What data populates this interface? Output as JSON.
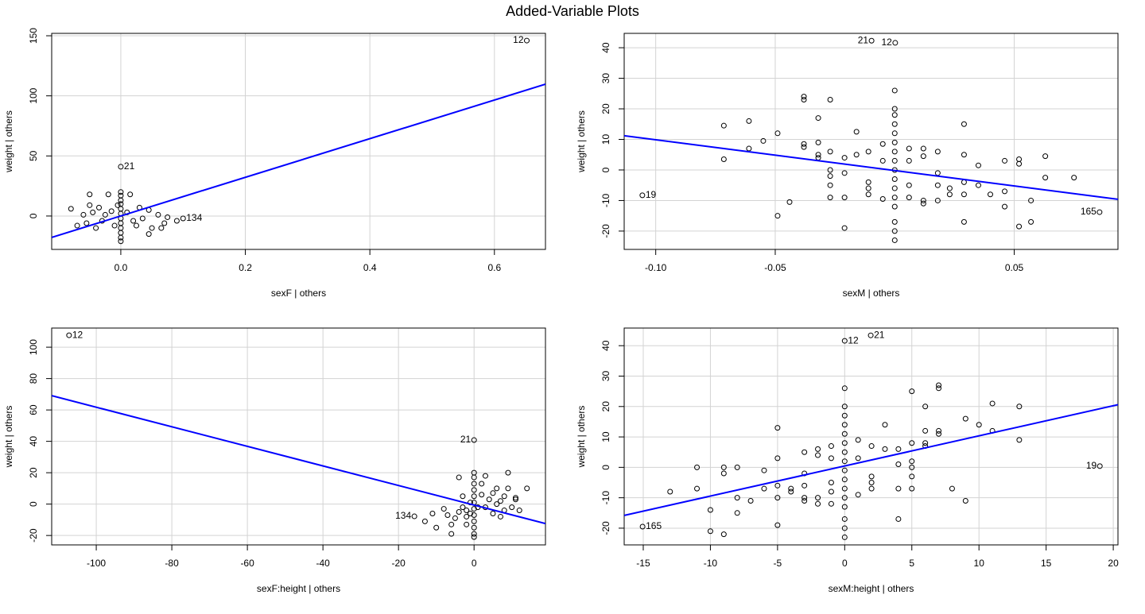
{
  "title": "Added-Variable Plots",
  "chart_data": [
    {
      "type": "scatter",
      "xlabel": "sexF | others",
      "ylabel": "weight  | others",
      "grid": true,
      "point_color": "#000000",
      "xlim": [
        -0.111,
        0.682
      ],
      "ylim": [
        -27.8,
        152
      ],
      "xticks": [
        {
          "value": 0,
          "label": "0.0"
        },
        {
          "value": 0.2,
          "label": "0.2"
        },
        {
          "value": 0.4,
          "label": "0.4"
        },
        {
          "value": 0.6,
          "label": "0.6"
        }
      ],
      "yticks": [
        0,
        50,
        100,
        150
      ],
      "x": [
        0.652,
        0,
        0.1,
        -0.08,
        -0.07,
        -0.06,
        -0.055,
        -0.05,
        -0.05,
        -0.045,
        -0.04,
        -0.035,
        -0.03,
        -0.025,
        -0.02,
        -0.015,
        -0.01,
        -0.005,
        0,
        0,
        0,
        0,
        0,
        0,
        0,
        0,
        0,
        0,
        0,
        0,
        0.01,
        0.015,
        0.02,
        0.025,
        0.03,
        0.035,
        0.045,
        0.045,
        0.05,
        0.06,
        0.065,
        0.07,
        0.075,
        0.09
      ],
      "y": [
        146,
        41,
        -2,
        6,
        -8,
        1,
        -6,
        18,
        9,
        3,
        -10,
        7,
        -4,
        1,
        18,
        4,
        -8,
        9,
        20,
        17,
        13,
        10,
        6,
        2,
        -2,
        -6,
        -10,
        -14,
        -18,
        -21,
        3,
        18,
        -4,
        -8,
        7,
        -2,
        -15,
        5,
        -10,
        1,
        -10,
        -6,
        -1,
        -4
      ],
      "fit": {
        "x": [
          -0.111,
          0.682
        ],
        "y": [
          -17.8,
          109.7
        ],
        "color": "#0000ff"
      },
      "point_labels": [
        {
          "text": "12",
          "x": 0.652,
          "y": 146
        },
        {
          "text": "21",
          "x": 0,
          "y": 41
        },
        {
          "text": "134",
          "x": 0.1,
          "y": -2
        }
      ]
    },
    {
      "type": "scatter",
      "xlabel": "sexM | others",
      "ylabel": "weight  | others",
      "grid": true,
      "point_color": "#000000",
      "xlim": [
        -0.1132,
        0.0934
      ],
      "ylim": [
        -26,
        44.7
      ],
      "xticks": [
        {
          "value": -0.1,
          "label": "-0.10"
        },
        {
          "value": -0.05,
          "label": "-0.05"
        },
        {
          "value": 0.05,
          "label": "0.05"
        }
      ],
      "yticks": [
        -20,
        -10,
        0,
        10,
        20,
        30,
        40
      ],
      "x": [
        -0.0715,
        -0.0715,
        -0.061,
        -0.061,
        -0.055,
        -0.049,
        -0.049,
        -0.044,
        -0.038,
        -0.038,
        -0.038,
        -0.038,
        -0.032,
        -0.032,
        -0.032,
        -0.032,
        -0.027,
        -0.027,
        -0.027,
        -0.027,
        -0.027,
        -0.027,
        -0.021,
        -0.021,
        -0.021,
        -0.021,
        -0.016,
        -0.016,
        -0.011,
        -0.011,
        -0.011,
        -0.011,
        -0.005,
        -0.005,
        -0.005,
        0,
        0,
        0,
        0,
        0,
        0,
        0,
        0,
        0,
        0,
        0,
        0,
        0,
        0,
        0,
        0,
        0.006,
        0.006,
        0.006,
        0.006,
        0.012,
        0.012,
        0.012,
        0.012,
        0.018,
        0.018,
        0.018,
        0.018,
        0.023,
        0.023,
        0.029,
        0.029,
        0.029,
        0.029,
        0.029,
        0.035,
        0.035,
        0.04,
        0.046,
        0.046,
        0.046,
        0.052,
        0.052,
        0.052,
        0.057,
        0.057,
        0.063,
        0.063,
        0.075,
        -0.0097,
        0.0002,
        -0.1056,
        0.0857
      ],
      "y": [
        14.5,
        3.5,
        16,
        7,
        9.5,
        12,
        -15,
        -10.5,
        24,
        23,
        8.5,
        7.5,
        17,
        5,
        4,
        9,
        23,
        6,
        0,
        -2,
        -5,
        -9,
        4,
        -1,
        -9,
        -19,
        5,
        12.5,
        6,
        -4,
        -6,
        -8,
        8.5,
        3,
        -9.5,
        26,
        20,
        18,
        15,
        12,
        9,
        6,
        3,
        0,
        -3,
        -6,
        -9,
        -12,
        -17,
        -20,
        -23,
        7,
        3,
        -5,
        -9,
        7,
        4.5,
        -10,
        -11,
        6,
        -1,
        -5,
        -10,
        -6,
        -8,
        15,
        5,
        -4,
        -8,
        -17,
        1.5,
        -5,
        -8,
        3,
        -7,
        -12,
        3.5,
        2,
        -18.5,
        -10,
        -17,
        4.5,
        -2.5,
        -2.5,
        42.3,
        41.6,
        -8.3,
        -13.8
      ],
      "fit": {
        "x": [
          -0.1132,
          0.0934
        ],
        "y": [
          11.2,
          -9.6
        ],
        "color": "#0000ff"
      },
      "point_labels": [
        {
          "text": "21",
          "x": -0.0097,
          "y": 42.3
        },
        {
          "text": "12",
          "x": 0.0002,
          "y": 41.6
        },
        {
          "text": "19",
          "x": -0.1056,
          "y": -8.3
        },
        {
          "text": "165",
          "x": 0.0857,
          "y": -13.8
        }
      ]
    },
    {
      "type": "scatter",
      "xlabel": "sexF:height | others",
      "ylabel": "weight  | others",
      "grid": true,
      "point_color": "#000000",
      "xlim": [
        -111.8,
        18.9
      ],
      "ylim": [
        -26,
        112.2
      ],
      "xticks": [
        -100,
        -80,
        -60,
        -40,
        -20,
        0
      ],
      "yticks": [
        -20,
        0,
        20,
        40,
        60,
        80,
        100
      ],
      "x": [
        -107.2,
        0,
        -15.8,
        -13,
        -11,
        -10,
        -8,
        -7,
        -6,
        -6,
        -5,
        -4,
        -3,
        -3,
        -2,
        -2,
        -1,
        -1,
        0,
        0,
        0,
        0,
        0,
        0,
        0,
        0,
        0,
        0,
        0,
        0,
        1,
        2,
        2,
        3,
        3,
        4,
        5,
        5,
        6,
        6,
        7,
        7,
        8,
        8,
        9,
        9,
        10,
        11,
        11,
        12,
        14,
        -4,
        -2
      ],
      "y": [
        107.6,
        40.8,
        -7.8,
        -11,
        -6,
        -15,
        -3,
        -7,
        -19,
        -13,
        -9,
        -5,
        5,
        -2,
        -4,
        -8,
        -6,
        1,
        20,
        17,
        13,
        9,
        5,
        1,
        -3,
        -7,
        -11,
        -15,
        -19,
        -21,
        -2,
        13,
        6,
        18,
        -2,
        3,
        -6,
        7,
        0,
        10,
        2,
        -8,
        5,
        -4,
        10,
        20,
        -2,
        3,
        4,
        -4,
        10,
        17,
        -13
      ],
      "fit": {
        "x": [
          -111.8,
          18.9
        ],
        "y": [
          69.1,
          -12.4
        ],
        "color": "#0000ff"
      },
      "point_labels": [
        {
          "text": "12",
          "x": -107.2,
          "y": 107.6
        },
        {
          "text": "21",
          "x": 0,
          "y": 40.8
        },
        {
          "text": "134",
          "x": -15.8,
          "y": -7.8
        }
      ]
    },
    {
      "type": "scatter",
      "xlabel": "sexM:height | others",
      "ylabel": "weight  | others",
      "grid": true,
      "point_color": "#000000",
      "xlim": [
        -16.42,
        20.35
      ],
      "ylim": [
        -25.5,
        45.8
      ],
      "xticks": [
        -15,
        -10,
        -5,
        0,
        5,
        10,
        15,
        20
      ],
      "yticks": [
        -20,
        -10,
        0,
        10,
        20,
        30,
        40
      ],
      "x": [
        0,
        1.94,
        19,
        -15.05,
        -13,
        -11,
        -11,
        -10,
        -10,
        -9,
        -9,
        -9,
        -8,
        -8,
        -8,
        -7,
        -6,
        -6,
        -5,
        -5,
        -5,
        -5,
        -5,
        -4,
        -4,
        -3,
        -3,
        -3,
        -3,
        -3,
        -2,
        -2,
        -2,
        -2,
        -1,
        -1,
        -1,
        -1,
        -1,
        0,
        0,
        0,
        0,
        0,
        0,
        0,
        0,
        0,
        0,
        0,
        0,
        0,
        0,
        0,
        0,
        1,
        1,
        1,
        2,
        2,
        2,
        2,
        3,
        3,
        4,
        4,
        4,
        4,
        5,
        5,
        5,
        5,
        5,
        5,
        6,
        6,
        6,
        6,
        7,
        7,
        7,
        7,
        8,
        9,
        9,
        10,
        11,
        11,
        13,
        13
      ],
      "y": [
        41.6,
        43.4,
        0.4,
        -19.5,
        -8,
        0,
        -7,
        -14,
        -21,
        -22,
        0,
        -2,
        0,
        -10,
        -15,
        -11,
        -7,
        -1,
        13,
        3,
        -6,
        -10,
        -19,
        -7,
        -8,
        5,
        -2,
        -6,
        -10,
        -11,
        6,
        4,
        -10,
        -12,
        7,
        3,
        -5,
        -8,
        -12,
        26,
        20,
        17,
        14,
        11,
        8,
        5,
        2,
        -1,
        -4,
        -7,
        -10,
        -13,
        -17,
        -20,
        -23,
        9,
        3,
        -9,
        7,
        -3,
        -5,
        -7,
        14,
        6,
        6,
        1,
        -7,
        -17,
        25,
        8,
        2,
        0,
        -3,
        -7,
        20,
        12,
        8,
        7,
        27,
        26,
        12,
        11,
        -7,
        16,
        -11,
        14,
        21,
        12,
        20,
        9
      ],
      "fit": {
        "x": [
          -16.42,
          20.35
        ],
        "y": [
          -15.8,
          20.6
        ],
        "color": "#0000ff"
      },
      "point_labels": [
        {
          "text": "12",
          "x": 0,
          "y": 41.6
        },
        {
          "text": "21",
          "x": 1.94,
          "y": 43.4
        },
        {
          "text": "19",
          "x": 19,
          "y": 0.4
        },
        {
          "text": "165",
          "x": -15.05,
          "y": -19.5
        }
      ]
    }
  ]
}
